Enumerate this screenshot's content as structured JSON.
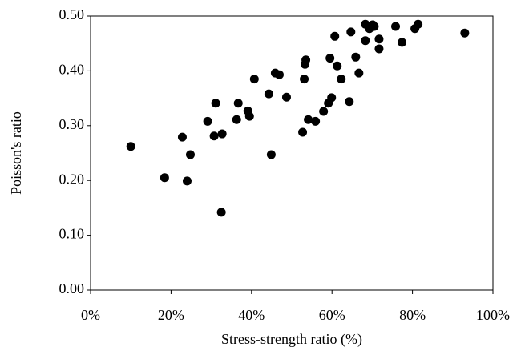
{
  "chart_data": {
    "type": "scatter",
    "x_label": "Stress-strength ratio (%)",
    "y_label": "Poisson's ratio",
    "color": "#000000",
    "x": [
      10.0,
      18.4,
      22.8,
      24.0,
      24.8,
      29.1,
      30.7,
      31.1,
      32.7,
      32.5,
      36.3,
      36.7,
      39.1,
      39.5,
      40.7,
      44.3,
      44.9,
      45.9,
      46.9,
      48.7,
      52.7,
      53.1,
      53.3,
      53.5,
      54.1,
      55.9,
      57.9,
      59.1,
      59.9,
      59.5,
      60.7,
      61.3,
      62.3,
      64.3,
      64.7,
      65.9,
      66.7,
      68.3,
      68.3,
      69.3,
      70.1,
      70.5,
      71.7,
      71.7,
      75.8,
      77.4,
      80.6,
      81.4,
      93.0
    ],
    "values": [
      0.262,
      0.205,
      0.279,
      0.199,
      0.247,
      0.308,
      0.281,
      0.341,
      0.285,
      0.142,
      0.311,
      0.341,
      0.327,
      0.317,
      0.385,
      0.358,
      0.247,
      0.396,
      0.393,
      0.352,
      0.288,
      0.385,
      0.412,
      0.42,
      0.311,
      0.308,
      0.326,
      0.341,
      0.351,
      0.423,
      0.463,
      0.409,
      0.385,
      0.344,
      0.471,
      0.425,
      0.396,
      0.485,
      0.455,
      0.477,
      0.484,
      0.481,
      0.458,
      0.44,
      0.481,
      0.452,
      0.477,
      0.485,
      0.469
    ],
    "xlim": [
      0,
      100
    ],
    "xticks": [
      {
        "value": 0,
        "label": "0%"
      },
      {
        "value": 20,
        "label": "20%"
      },
      {
        "value": 40,
        "label": "40%"
      },
      {
        "value": 60,
        "label": "60%"
      },
      {
        "value": 80,
        "label": "80%"
      },
      {
        "value": 100,
        "label": "100%"
      }
    ],
    "ylim": [
      0,
      0.5
    ],
    "yticks": [
      {
        "value": 0,
        "label": "0.00"
      },
      {
        "value": 0.1,
        "label": "0.10"
      },
      {
        "value": 0.2,
        "label": "0.20"
      },
      {
        "value": 0.3,
        "label": "0.30"
      },
      {
        "value": 0.4,
        "label": "0.40"
      },
      {
        "value": 0.5,
        "label": "0.50"
      }
    ],
    "grid": false
  }
}
